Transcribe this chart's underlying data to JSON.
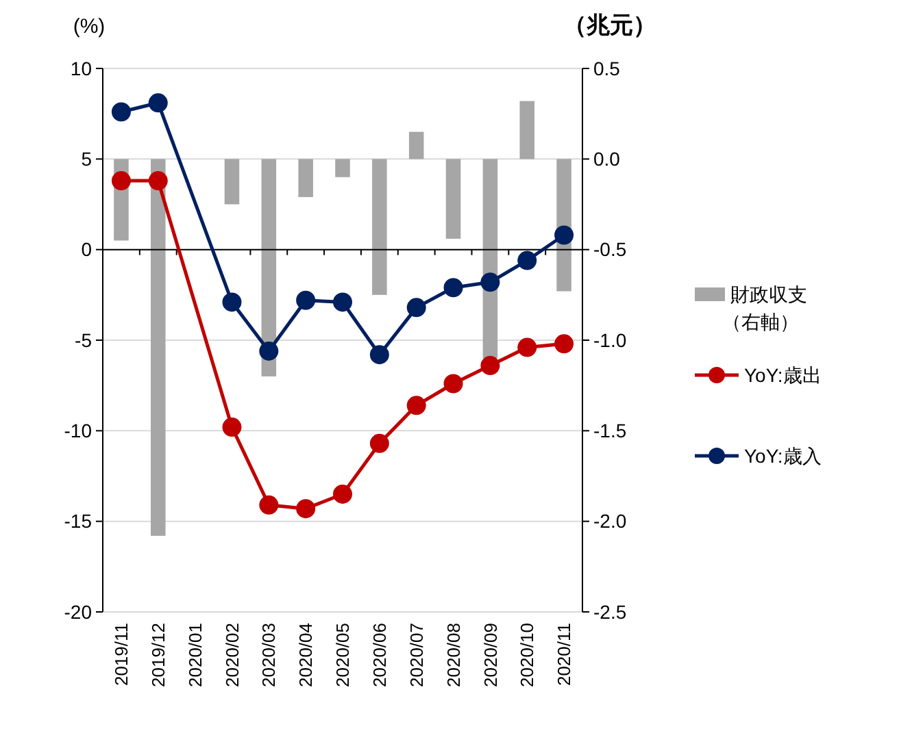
{
  "chart_data": {
    "type": "bar",
    "ylabel": "(%)",
    "y2label": "（兆元）",
    "categories": [
      "2019/11",
      "2019/12",
      "2020/01",
      "2020/02",
      "2020/03",
      "2020/04",
      "2020/05",
      "2020/06",
      "2020/07",
      "2020/08",
      "2020/09",
      "2020/10",
      "2020/11"
    ],
    "series": [
      {
        "name": "財政収支（右軸）",
        "axis": "y2",
        "color": "#a6a6a6",
        "values": [
          -0.45,
          -2.08,
          null,
          -0.25,
          -1.2,
          -0.21,
          -0.1,
          -0.75,
          0.15,
          -0.44,
          -1.1,
          0.32,
          -0.73
        ]
      },
      {
        "name": "YoY:歳出",
        "type": "line",
        "color": "#c00000",
        "marker": "circle",
        "values": [
          3.8,
          3.8,
          null,
          -9.8,
          -14.1,
          -14.3,
          -13.5,
          -10.7,
          -8.6,
          -7.4,
          -6.4,
          -5.4,
          -5.2
        ]
      },
      {
        "name": "YoY:歳入",
        "type": "line",
        "color": "#002060",
        "marker": "circle",
        "values": [
          7.6,
          8.1,
          null,
          -2.9,
          -5.6,
          -2.8,
          -2.9,
          -5.8,
          -3.2,
          -2.1,
          -1.8,
          -0.6,
          0.8
        ]
      }
    ],
    "ylim": [
      -20,
      10
    ],
    "yticks": [
      -20,
      -15,
      -10,
      -5,
      0,
      5,
      10
    ],
    "y2lim": [
      -2.5,
      0.5
    ],
    "y2ticks": [
      -2.5,
      {
        "value": -2,
        "label": "-2.0"
      },
      -1.5,
      {
        "value": -1,
        "label": "-1.0"
      },
      -0.5,
      {
        "value": 0,
        "label": "0.0"
      },
      0.5
    ],
    "grid": "y",
    "legend": "right"
  }
}
